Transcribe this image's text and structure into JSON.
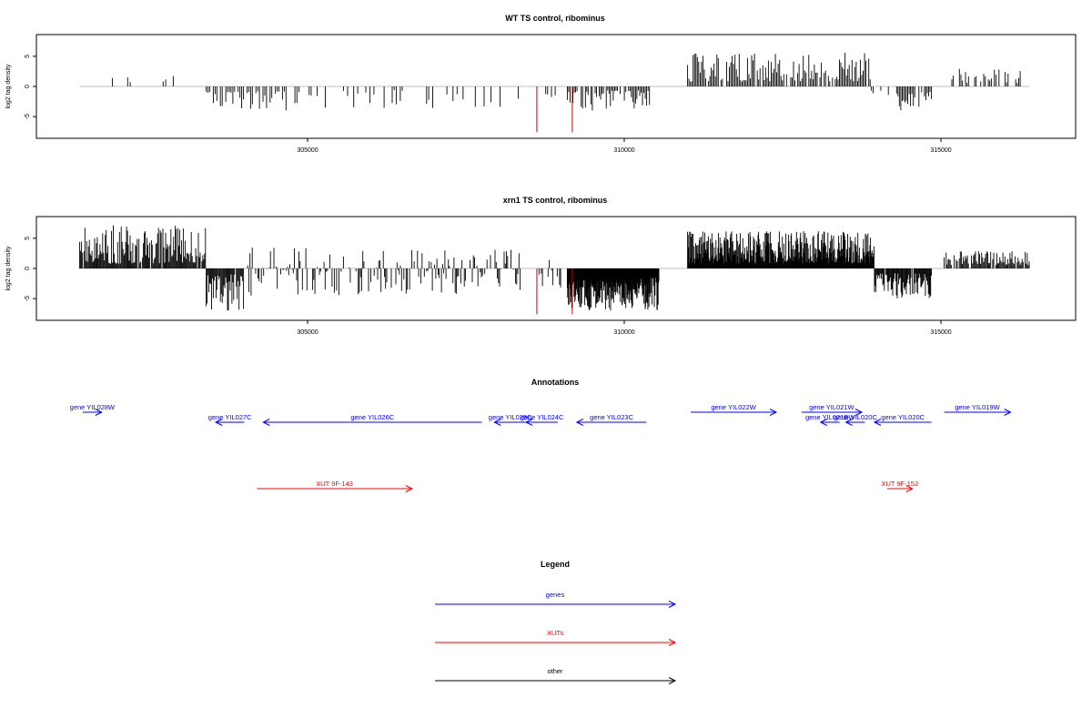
{
  "chart_data": [
    {
      "type": "bar",
      "title": "WT TS control, ribominus",
      "ylabel": "log2 tag density",
      "xlim": [
        301200,
        317000
      ],
      "ylim": [
        -8,
        8
      ],
      "xticks": [
        305000,
        310000,
        315000
      ],
      "yticks": [
        -5,
        0,
        5
      ],
      "grid": false,
      "bar_color": "#000000",
      "highlight_color": "#cc0000",
      "highlight": [
        {
          "x": 308620,
          "y": -7.6
        },
        {
          "x": 309180,
          "y": -7.6
        }
      ],
      "segments": [
        {
          "from": 301400,
          "to": 303100,
          "density": 0.12,
          "min": 0.5,
          "max": 3.4,
          "step": 40
        },
        {
          "from": 303400,
          "to": 304700,
          "density": 0.75,
          "min": -4.0,
          "max": -0.8,
          "step": 28
        },
        {
          "from": 304800,
          "to": 307700,
          "density": 0.3,
          "min": -3.6,
          "max": -0.6,
          "step": 32
        },
        {
          "from": 307500,
          "to": 308350,
          "density": 0.15,
          "min": -4.0,
          "max": -1.0,
          "step": 36
        },
        {
          "from": 308700,
          "to": 309100,
          "density": 0.3,
          "min": -1.8,
          "max": -0.4,
          "step": 30
        },
        {
          "from": 309100,
          "to": 310400,
          "density": 0.85,
          "min": -4.0,
          "max": -0.6,
          "step": 22
        },
        {
          "from": 311000,
          "to": 313900,
          "density": 0.9,
          "min": 0.8,
          "max": 5.6,
          "step": 22
        },
        {
          "from": 313900,
          "to": 314300,
          "density": 0.2,
          "min": -1.6,
          "max": -0.4,
          "step": 30
        },
        {
          "from": 314300,
          "to": 314850,
          "density": 0.85,
          "min": -4.2,
          "max": -0.8,
          "step": 22
        },
        {
          "from": 315100,
          "to": 316300,
          "density": 0.55,
          "min": 0.6,
          "max": 3.2,
          "step": 24
        }
      ]
    },
    {
      "type": "bar",
      "title": "xrn1 TS control, ribominus",
      "ylabel": "log2 tag density",
      "xlim": [
        301200,
        317000
      ],
      "ylim": [
        -8,
        8
      ],
      "xticks": [
        305000,
        310000,
        315000
      ],
      "yticks": [
        -5,
        0,
        5
      ],
      "grid": false,
      "bar_color": "#000000",
      "highlight_color": "#cc0000",
      "highlight": [
        {
          "x": 308620,
          "y": -7.6
        },
        {
          "x": 309180,
          "y": -7.6
        }
      ],
      "segments": [
        {
          "from": 301400,
          "to": 303400,
          "density": 0.95,
          "min": 0.8,
          "max": 7.2,
          "step": 14
        },
        {
          "from": 303400,
          "to": 304000,
          "density": 0.95,
          "min": -7.0,
          "max": -1.0,
          "step": 14
        },
        {
          "from": 304000,
          "to": 308400,
          "density": 0.55,
          "min": -4.5,
          "max": 3.5,
          "step": 18
        },
        {
          "from": 308600,
          "to": 309000,
          "density": 0.55,
          "min": -3.2,
          "max": 1.4,
          "step": 18
        },
        {
          "from": 309100,
          "to": 310550,
          "density": 1.0,
          "min": -7.0,
          "max": -1.5,
          "step": 6
        },
        {
          "from": 311000,
          "to": 313950,
          "density": 1.0,
          "min": 0.8,
          "max": 6.3,
          "step": 8
        },
        {
          "from": 313950,
          "to": 314850,
          "density": 0.9,
          "min": -5.0,
          "max": -0.8,
          "step": 12
        },
        {
          "from": 315050,
          "to": 316400,
          "density": 0.8,
          "min": 0.6,
          "max": 3.0,
          "step": 16
        }
      ]
    },
    {
      "type": "other",
      "title": "Annotations",
      "xlim": [
        301200,
        317000
      ],
      "features": [
        {
          "label": "gene YIL028W",
          "start": 301450,
          "end": 301750,
          "strand": "+",
          "row": 0,
          "kind": "gene"
        },
        {
          "label": "gene YIL027C",
          "start": 303550,
          "end": 304000,
          "strand": "-",
          "row": 1,
          "kind": "gene"
        },
        {
          "label": "gene YIL026C",
          "start": 304300,
          "end": 307750,
          "strand": "-",
          "row": 1,
          "kind": "gene"
        },
        {
          "label": "gene YIL025C",
          "start": 307950,
          "end": 308450,
          "strand": "-",
          "row": 1,
          "kind": "gene"
        },
        {
          "label": "gene YIL024C",
          "start": 308450,
          "end": 308950,
          "strand": "-",
          "row": 1,
          "kind": "gene"
        },
        {
          "label": "gene YIL023C",
          "start": 309250,
          "end": 310350,
          "strand": "-",
          "row": 1,
          "kind": "gene"
        },
        {
          "label": "gene YIL022W",
          "start": 311050,
          "end": 312400,
          "strand": "+",
          "row": 0,
          "kind": "gene"
        },
        {
          "label": "gene YIL021W",
          "start": 312800,
          "end": 313750,
          "strand": "+",
          "row": 0,
          "kind": "gene"
        },
        {
          "label": "gene YIL021BW",
          "start": 313100,
          "end": 313400,
          "strand": "-",
          "row": 1,
          "kind": "gene"
        },
        {
          "label": "gene YIL020C",
          "start": 313500,
          "end": 313800,
          "strand": "-",
          "row": 1,
          "kind": "gene"
        },
        {
          "label": "gene YIL020C",
          "start": 313950,
          "end": 314850,
          "strand": "-",
          "row": 1,
          "kind": "gene"
        },
        {
          "label": "gene YIL019W",
          "start": 315050,
          "end": 316100,
          "strand": "+",
          "row": 0,
          "kind": "gene"
        },
        {
          "label": "XUT 9F-143",
          "start": 304200,
          "end": 306650,
          "strand": "+",
          "row": 2,
          "kind": "xut"
        },
        {
          "label": "XUT 9F-152",
          "start": 314150,
          "end": 314550,
          "strand": "+",
          "row": 2,
          "kind": "xut"
        }
      ]
    },
    {
      "type": "other",
      "title": "Legend",
      "entries": [
        {
          "label": "genes",
          "color": "#0000ff"
        },
        {
          "label": "XUTs",
          "color": "#ff0000"
        },
        {
          "label": "other",
          "color": "#000000"
        }
      ]
    }
  ],
  "colors": {
    "gene": "#0000ff",
    "xut": "#ff0000",
    "other": "#000000",
    "axis": "#000000",
    "baseline": "#aaaaaa"
  }
}
